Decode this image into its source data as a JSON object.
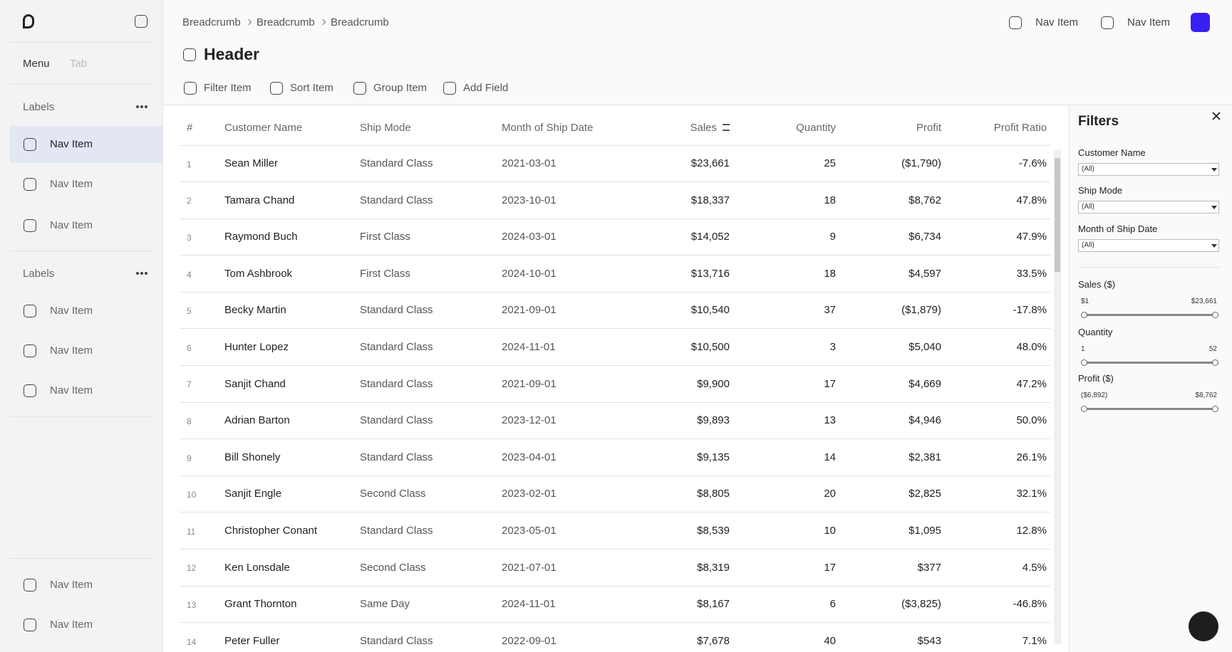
{
  "sidebar": {
    "tabs": [
      "Menu",
      "Tab"
    ],
    "groups": [
      {
        "label": "Labels",
        "items": [
          "Nav Item",
          "Nav Item",
          "Nav Item"
        ]
      },
      {
        "label": "Labels",
        "items": [
          "Nav Item",
          "Nav Item",
          "Nav Item"
        ]
      }
    ],
    "footer": [
      "Nav Item",
      "Nav Item"
    ]
  },
  "header": {
    "breadcrumbs": [
      "Breadcrumb",
      "Breadcrumb",
      "Breadcrumb"
    ],
    "nav": [
      "Nav Item",
      "Nav Item"
    ],
    "title": "Header",
    "toolbar": [
      "Filter Item",
      "Sort Item",
      "Group Item",
      "Add Field"
    ]
  },
  "table": {
    "columns": [
      "#",
      "Customer Name",
      "Ship Mode",
      "Month of Ship Date",
      "Sales",
      "Quantity",
      "Profit",
      "Profit Ratio"
    ],
    "rows": [
      [
        "1",
        "Sean Miller",
        "Standard Class",
        "2021-03-01",
        "$23,661",
        "25",
        "($1,790)",
        "-7.6%"
      ],
      [
        "2",
        "Tamara Chand",
        "Standard Class",
        "2023-10-01",
        "$18,337",
        "18",
        "$8,762",
        "47.8%"
      ],
      [
        "3",
        "Raymond Buch",
        "First Class",
        "2024-03-01",
        "$14,052",
        "9",
        "$6,734",
        "47.9%"
      ],
      [
        "4",
        "Tom Ashbrook",
        "First Class",
        "2024-10-01",
        "$13,716",
        "18",
        "$4,597",
        "33.5%"
      ],
      [
        "5",
        "Becky Martin",
        "Standard Class",
        "2021-09-01",
        "$10,540",
        "37",
        "($1,879)",
        "-17.8%"
      ],
      [
        "6",
        "Hunter Lopez",
        "Standard Class",
        "2024-11-01",
        "$10,500",
        "3",
        "$5,040",
        "48.0%"
      ],
      [
        "7",
        "Sanjit Chand",
        "Standard Class",
        "2021-09-01",
        "$9,900",
        "17",
        "$4,669",
        "47.2%"
      ],
      [
        "8",
        "Adrian Barton",
        "Standard Class",
        "2023-12-01",
        "$9,893",
        "13",
        "$4,946",
        "50.0%"
      ],
      [
        "9",
        "Bill Shonely",
        "Standard Class",
        "2023-04-01",
        "$9,135",
        "14",
        "$2,381",
        "26.1%"
      ],
      [
        "10",
        "Sanjit Engle",
        "Second Class",
        "2023-02-01",
        "$8,805",
        "20",
        "$2,825",
        "32.1%"
      ],
      [
        "11",
        "Christopher Conant",
        "Standard Class",
        "2023-05-01",
        "$8,539",
        "10",
        "$1,095",
        "12.8%"
      ],
      [
        "12",
        "Ken Lonsdale",
        "Second Class",
        "2021-07-01",
        "$8,319",
        "17",
        "$377",
        "4.5%"
      ],
      [
        "13",
        "Grant Thornton",
        "Same Day",
        "2024-11-01",
        "$8,167",
        "6",
        "($3,825)",
        "-46.8%"
      ],
      [
        "14",
        "Peter Fuller",
        "Standard Class",
        "2022-09-01",
        "$7,678",
        "40",
        "$543",
        "7.1%"
      ]
    ]
  },
  "filters": {
    "title": "Filters",
    "dropdowns": [
      {
        "label": "Customer Name",
        "value": "(All)"
      },
      {
        "label": "Ship Mode",
        "value": "(All)"
      },
      {
        "label": "Month of Ship Date",
        "value": "(All)"
      }
    ],
    "sliders": [
      {
        "label": "Sales ($)",
        "min": "$1",
        "max": "$23,661"
      },
      {
        "label": "Quantity",
        "min": "1",
        "max": "52"
      },
      {
        "label": "Profit ($)",
        "min": "($6,892)",
        "max": "$8,762"
      }
    ]
  }
}
